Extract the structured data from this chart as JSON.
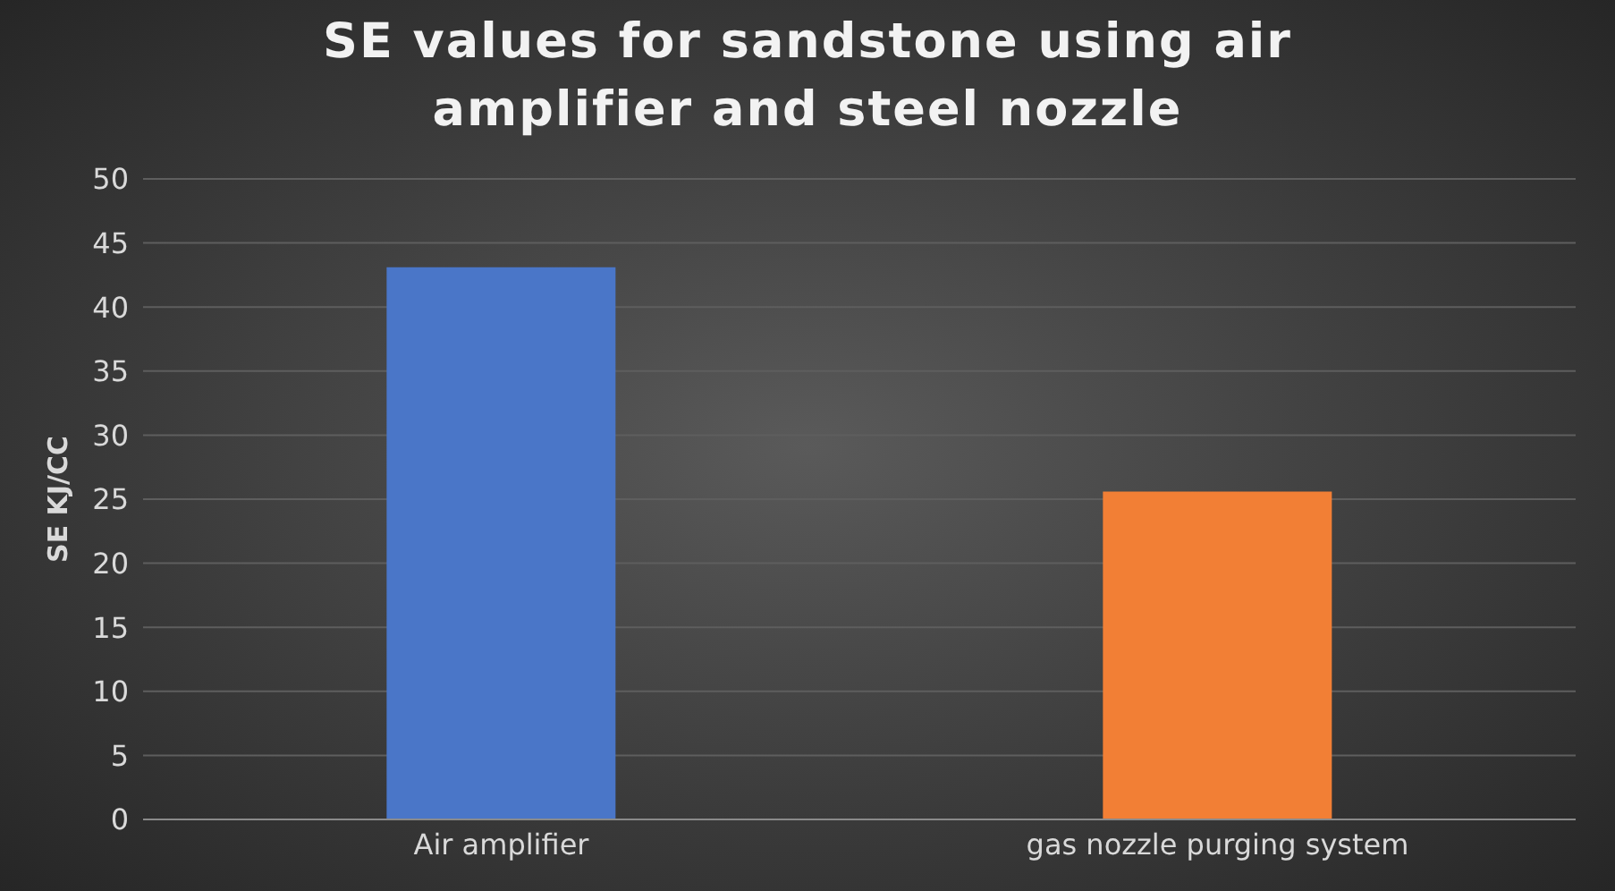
{
  "chart_data": {
    "type": "bar",
    "title": "SE values for sandstone using air amplifier and steel nozzle",
    "ylabel": "SE KJ/CC",
    "categories": [
      "Air amplifier",
      "gas nozzle purging system"
    ],
    "values": [
      43.1,
      25.6
    ],
    "colors": [
      "#4a76c8",
      "#f27f35"
    ],
    "ylim": [
      0,
      50
    ],
    "yticks": [
      0,
      5,
      10,
      15,
      20,
      25,
      30,
      35,
      40,
      45,
      50
    ],
    "grid": "y"
  }
}
